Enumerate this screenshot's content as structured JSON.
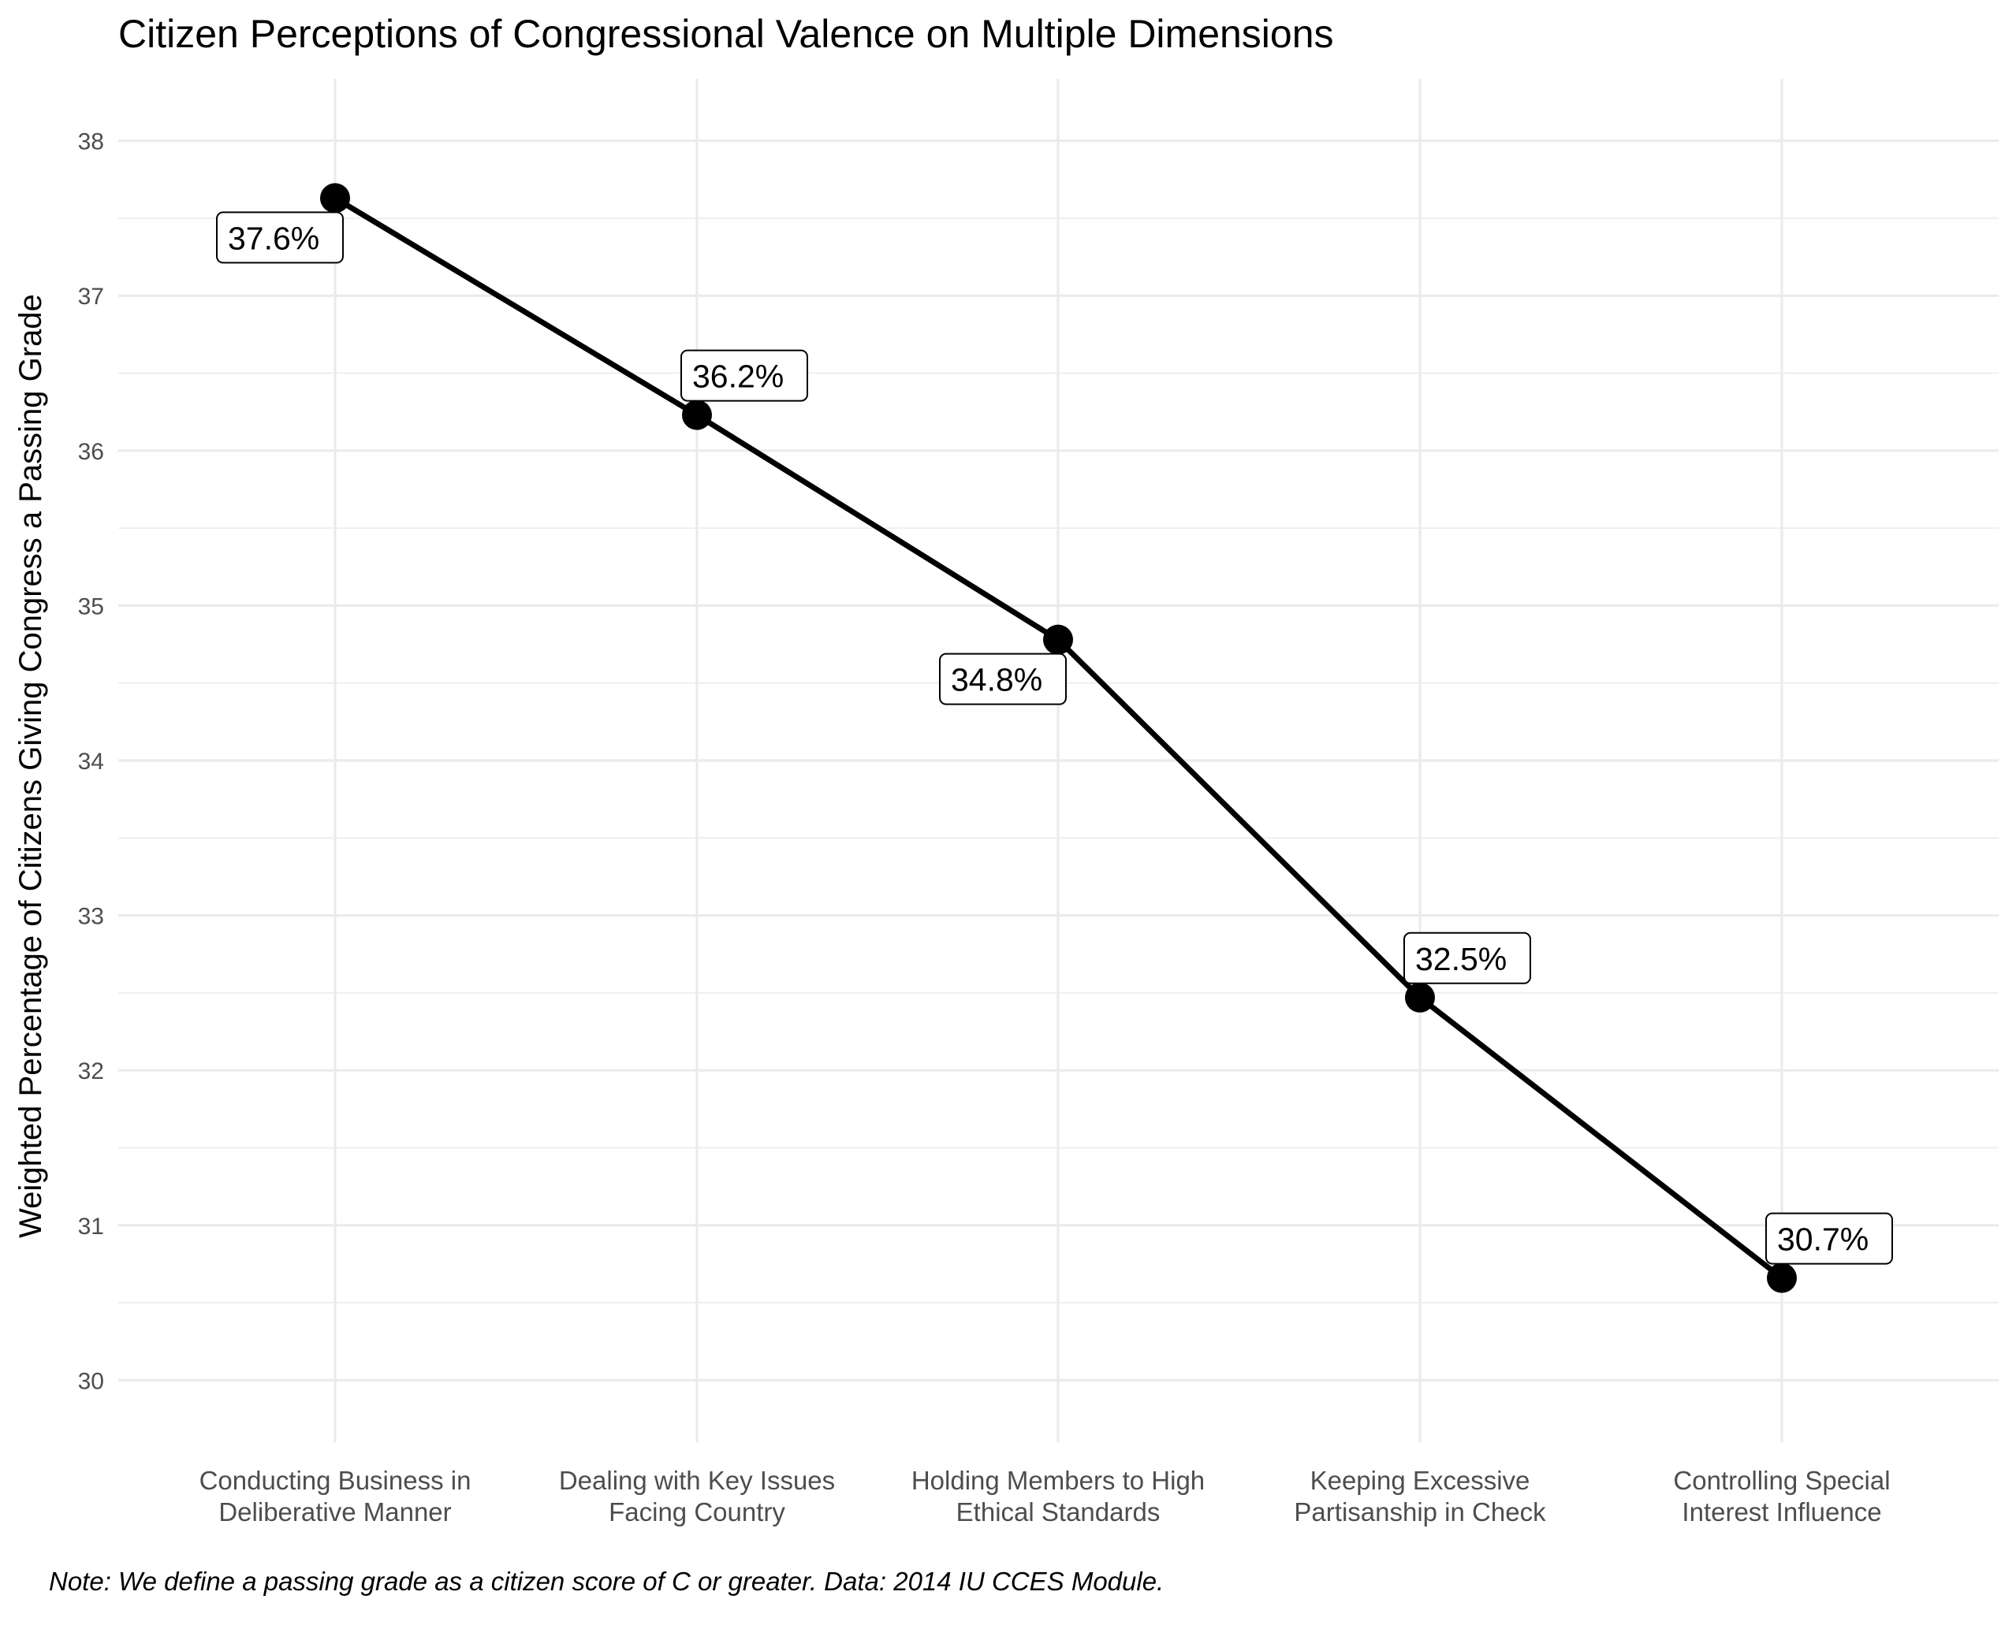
{
  "chart_data": {
    "type": "line",
    "title": "Citizen Perceptions of Congressional Valence on Multiple Dimensions",
    "xlabel": "",
    "ylabel": "Weighted Percentage of Citizens Giving Congress a Passing Grade",
    "categories": [
      [
        "Conducting Business in",
        "Deliberative Manner"
      ],
      [
        "Dealing with Key Issues",
        "Facing Country"
      ],
      [
        "Holding Members to High",
        "Ethical Standards"
      ],
      [
        "Keeping Excessive",
        "Partisanship in Check"
      ],
      [
        "Controlling Special",
        "Interest Influence"
      ]
    ],
    "values": [
      37.63,
      36.23,
      34.78,
      32.47,
      30.66
    ],
    "data_labels": [
      "37.6%",
      "36.2%",
      "34.8%",
      "32.5%",
      "30.7%"
    ],
    "label_positions": [
      "below-left",
      "above-right",
      "below-left",
      "above-right",
      "above-right"
    ],
    "ylim": [
      29.6,
      38.4
    ],
    "yticks": [
      "30",
      "31",
      "32",
      "33",
      "34",
      "35",
      "36",
      "37",
      "38"
    ],
    "grid": true,
    "line_color": "#000000",
    "note": "Note: We define a passing grade as a citizen score of C or greater. Data: 2014 IU CCES Module."
  }
}
